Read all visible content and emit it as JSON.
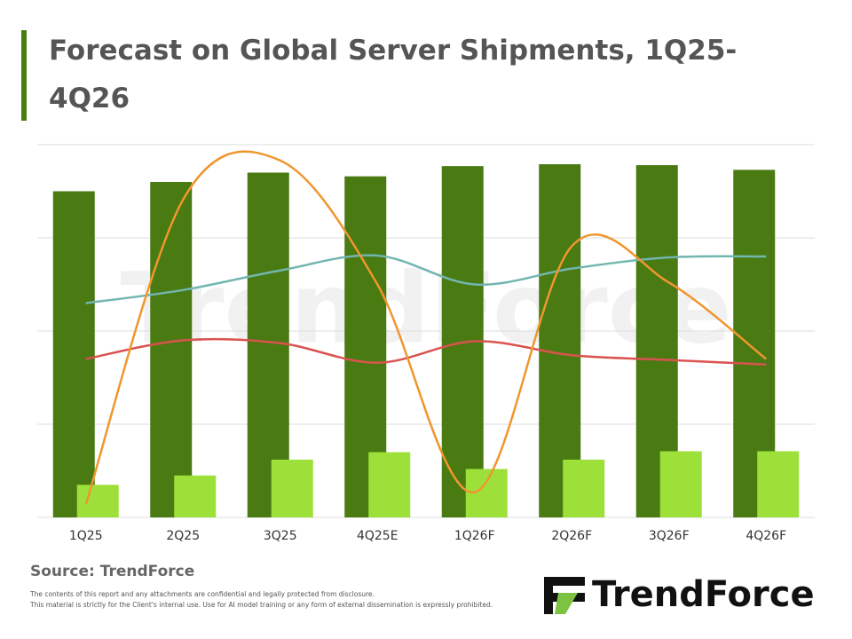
{
  "chart_data": {
    "type": "combo",
    "title": "Forecast on Global Server Shipments, 1Q25-4Q26",
    "categories": [
      "1Q25",
      "2Q25",
      "3Q25",
      "4Q25E",
      "1Q26F",
      "2Q26F",
      "3Q26F",
      "4Q26F"
    ],
    "series": [
      {
        "type": "bar",
        "color": "#4a7a12",
        "values": [
          3.5,
          3.6,
          3.7,
          3.66,
          3.77,
          3.79,
          3.78,
          3.73
        ]
      },
      {
        "type": "bar",
        "color": "#9de03a",
        "values": [
          0.35,
          0.45,
          0.62,
          0.7,
          0.52,
          0.62,
          0.71,
          0.71
        ]
      },
      {
        "type": "line",
        "color": "#72b6b0",
        "values": [
          2.3,
          2.44,
          2.65,
          2.81,
          2.5,
          2.67,
          2.79,
          2.8
        ]
      },
      {
        "type": "line",
        "color": "#d9534f",
        "values": [
          1.7,
          1.9,
          1.87,
          1.66,
          1.89,
          1.74,
          1.69,
          1.64
        ]
      },
      {
        "type": "line",
        "color": "#f0962e",
        "values": [
          0.14,
          3.41,
          3.83,
          2.5,
          0.27,
          2.91,
          2.52,
          1.7
        ]
      }
    ],
    "ylim": [
      0,
      4
    ],
    "yticks": [
      0,
      1,
      2,
      3,
      4
    ],
    "grid": true,
    "ytick_labels": false,
    "watermark": "TrendForce",
    "source": "Source: TrendForce",
    "disclaimer": [
      "The contents of this report and any attachments are confidential and legally protected from disclosure.",
      "This material is strictly for the Client's internal use. Use for AI model training or any form of external dissemination is expressly prohibited."
    ],
    "logo": "TrendForce"
  }
}
